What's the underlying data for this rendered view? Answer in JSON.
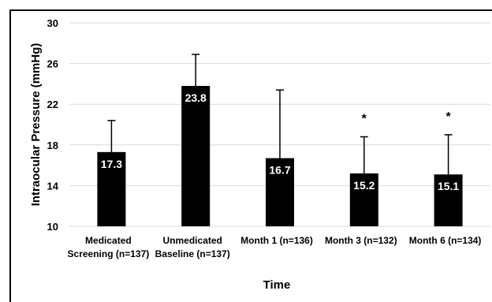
{
  "chart_data": {
    "type": "bar",
    "title": "",
    "xlabel": "Time",
    "ylabel": "Intraocular Pressure (mmHg)",
    "ylim": [
      10,
      30
    ],
    "yticks": [
      "10",
      "14",
      "18",
      "22",
      "26",
      "30"
    ],
    "grid": true,
    "categories": [
      [
        "Medicated",
        "Screening (n=137)"
      ],
      [
        "Unmedicated",
        "Baseline (n=137)"
      ],
      [
        "Month 1 (n=136)"
      ],
      [
        "Month 3 (n=132)"
      ],
      [
        "Month 6 (n=134)"
      ]
    ],
    "values": [
      17.3,
      23.8,
      16.7,
      15.2,
      15.1
    ],
    "value_labels": [
      "17.3",
      "23.8",
      "16.7",
      "15.2",
      "15.1"
    ],
    "error_upper": [
      20.4,
      26.9,
      23.4,
      18.8,
      19.0
    ],
    "annotations": [
      "",
      "",
      "",
      "*",
      "*"
    ],
    "bar_color": "#000000",
    "grid_color": "#d9d9d9"
  }
}
